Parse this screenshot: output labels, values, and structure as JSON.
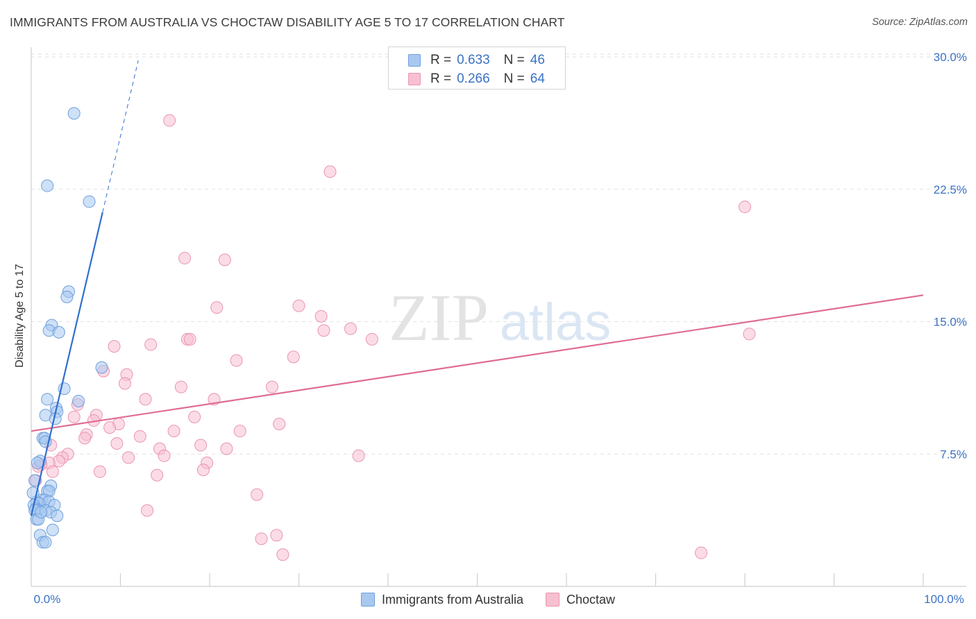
{
  "chart_data": {
    "type": "scatter",
    "title": "IMMIGRANTS FROM AUSTRALIA VS CHOCTAW DISABILITY AGE 5 TO 17 CORRELATION CHART",
    "source": "Source: ZipAtlas.com",
    "xlabel": "",
    "ylabel": "Disability Age 5 to 17",
    "xlim": [
      0,
      100
    ],
    "ylim": [
      0,
      30
    ],
    "x_tick_labels": [
      "0.0%",
      "100.0%"
    ],
    "y_ticks": [
      7.5,
      15.0,
      22.5,
      30.0
    ],
    "y_tick_labels": [
      "7.5%",
      "15.0%",
      "22.5%",
      "30.0%"
    ],
    "grid": true,
    "legend_position": "top-center",
    "watermark": "ZIPatlas",
    "colors": {
      "australia_fill": "#a8c8f0",
      "australia_stroke": "#6e9fdc",
      "australia_line": "#2f6fcf",
      "choctaw_fill": "#f7c0d1",
      "choctaw_stroke": "#ea94b1",
      "choctaw_line": "#e06b94",
      "value_text": "#3a72c4"
    },
    "series": [
      {
        "name": "Immigrants from Australia",
        "R": "0.633",
        "N": "46",
        "trend": {
          "x0": 0.0,
          "y0": 4.0,
          "x1": 8.0,
          "y1": 21.2,
          "dash_x1": 12.0,
          "dash_y1": 29.8
        },
        "points": [
          [
            4.8,
            26.8
          ],
          [
            1.8,
            22.7
          ],
          [
            6.5,
            21.8
          ],
          [
            4.2,
            16.7
          ],
          [
            4.0,
            16.4
          ],
          [
            2.3,
            14.8
          ],
          [
            2.0,
            14.5
          ],
          [
            3.1,
            14.4
          ],
          [
            7.9,
            12.4
          ],
          [
            3.7,
            11.2
          ],
          [
            1.8,
            10.6
          ],
          [
            5.3,
            10.5
          ],
          [
            2.8,
            10.1
          ],
          [
            2.9,
            9.9
          ],
          [
            1.6,
            9.7
          ],
          [
            2.7,
            9.5
          ],
          [
            1.3,
            8.4
          ],
          [
            1.5,
            8.4
          ],
          [
            1.6,
            8.2
          ],
          [
            1.0,
            7.1
          ],
          [
            0.7,
            7.0
          ],
          [
            2.2,
            5.7
          ],
          [
            1.8,
            5.4
          ],
          [
            2.0,
            5.4
          ],
          [
            1.2,
            4.9
          ],
          [
            1.5,
            4.9
          ],
          [
            2.0,
            4.8
          ],
          [
            0.6,
            4.8
          ],
          [
            0.9,
            4.7
          ],
          [
            2.6,
            4.6
          ],
          [
            0.3,
            4.6
          ],
          [
            0.5,
            4.4
          ],
          [
            0.7,
            4.3
          ],
          [
            0.4,
            4.3
          ],
          [
            1.6,
            4.3
          ],
          [
            2.2,
            4.2
          ],
          [
            2.9,
            4.0
          ],
          [
            0.6,
            3.8
          ],
          [
            0.8,
            3.8
          ],
          [
            2.4,
            3.2
          ],
          [
            1.0,
            2.9
          ],
          [
            1.3,
            2.5
          ],
          [
            1.6,
            2.5
          ],
          [
            0.2,
            5.3
          ],
          [
            0.4,
            6.0
          ],
          [
            1.1,
            4.2
          ]
        ]
      },
      {
        "name": "Choctaw",
        "R": "0.266",
        "N": "64",
        "trend": {
          "x0": 0.0,
          "y0": 8.8,
          "x1": 100.0,
          "y1": 16.5
        },
        "points": [
          [
            15.5,
            26.4
          ],
          [
            33.5,
            23.5
          ],
          [
            80.0,
            21.5
          ],
          [
            17.2,
            18.6
          ],
          [
            21.7,
            18.5
          ],
          [
            20.8,
            15.8
          ],
          [
            30.0,
            15.9
          ],
          [
            32.5,
            15.3
          ],
          [
            32.8,
            14.5
          ],
          [
            35.8,
            14.6
          ],
          [
            80.5,
            14.3
          ],
          [
            38.2,
            14.0
          ],
          [
            17.5,
            14.0
          ],
          [
            17.8,
            14.0
          ],
          [
            9.3,
            13.6
          ],
          [
            13.4,
            13.7
          ],
          [
            29.4,
            13.0
          ],
          [
            23.0,
            12.8
          ],
          [
            8.1,
            12.2
          ],
          [
            10.7,
            12.0
          ],
          [
            10.5,
            11.5
          ],
          [
            16.8,
            11.3
          ],
          [
            27.0,
            11.3
          ],
          [
            12.8,
            10.6
          ],
          [
            20.5,
            10.6
          ],
          [
            5.2,
            10.3
          ],
          [
            7.3,
            9.7
          ],
          [
            4.8,
            9.6
          ],
          [
            18.3,
            9.6
          ],
          [
            7.0,
            9.4
          ],
          [
            9.8,
            9.2
          ],
          [
            8.8,
            9.0
          ],
          [
            27.8,
            9.2
          ],
          [
            23.4,
            8.8
          ],
          [
            16.0,
            8.8
          ],
          [
            6.2,
            8.6
          ],
          [
            12.2,
            8.5
          ],
          [
            6.0,
            8.4
          ],
          [
            9.6,
            8.1
          ],
          [
            19.0,
            8.0
          ],
          [
            2.2,
            8.0
          ],
          [
            14.4,
            7.8
          ],
          [
            21.9,
            7.8
          ],
          [
            36.7,
            7.4
          ],
          [
            4.1,
            7.5
          ],
          [
            3.5,
            7.3
          ],
          [
            3.1,
            7.1
          ],
          [
            10.9,
            7.3
          ],
          [
            14.9,
            7.4
          ],
          [
            2.0,
            7.0
          ],
          [
            1.1,
            6.9
          ],
          [
            0.8,
            6.8
          ],
          [
            19.7,
            7.0
          ],
          [
            19.3,
            6.6
          ],
          [
            2.4,
            6.5
          ],
          [
            7.7,
            6.5
          ],
          [
            14.1,
            6.3
          ],
          [
            0.5,
            6.0
          ],
          [
            25.3,
            5.2
          ],
          [
            13.0,
            4.3
          ],
          [
            27.5,
            2.9
          ],
          [
            25.8,
            2.7
          ],
          [
            28.2,
            1.8
          ],
          [
            75.1,
            1.9
          ]
        ]
      }
    ]
  }
}
